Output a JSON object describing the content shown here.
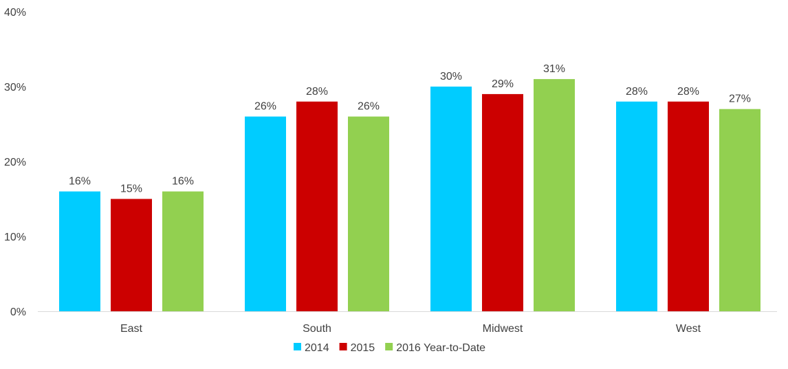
{
  "chart_data": {
    "type": "bar",
    "title": "",
    "xlabel": "",
    "ylabel": "",
    "categories": [
      "East",
      "South",
      "Midwest",
      "West"
    ],
    "series": [
      {
        "name": "2014",
        "values": [
          16,
          26,
          30,
          28
        ],
        "color": "#00CCFF"
      },
      {
        "name": "2015",
        "values": [
          15,
          28,
          29,
          28
        ],
        "color": "#CC0000"
      },
      {
        "name": "2016 Year-to-Date",
        "values": [
          16,
          26,
          31,
          27
        ],
        "color": "#92D050"
      }
    ],
    "value_suffix": "%",
    "ylim": [
      0,
      40
    ],
    "yticks": [
      "0%",
      "10%",
      "20%",
      "30%",
      "40%"
    ],
    "grid": false,
    "legend_position": "bottom-center"
  }
}
